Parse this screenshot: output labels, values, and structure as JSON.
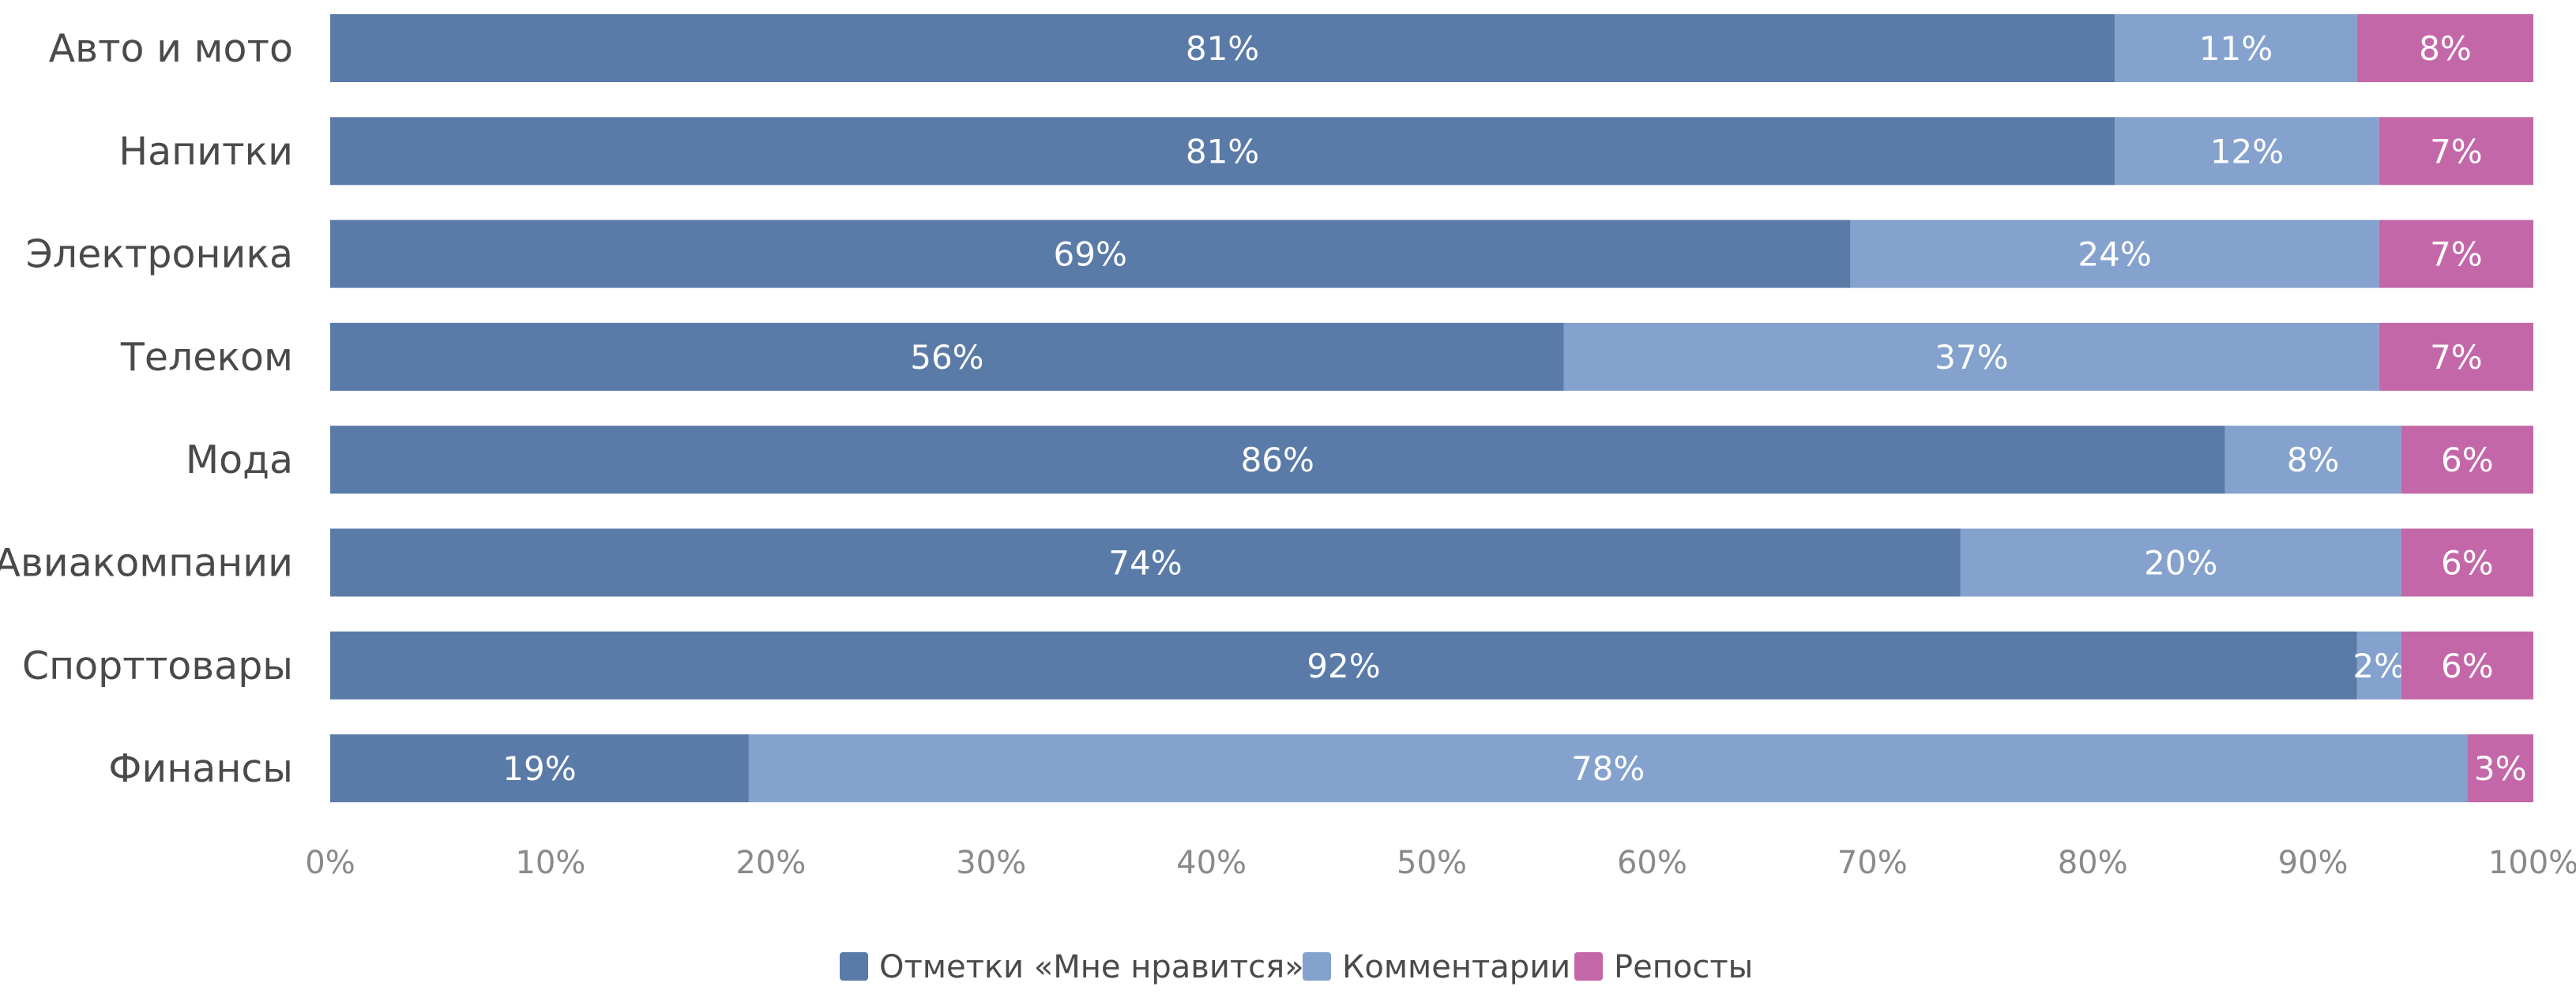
{
  "chart_data": {
    "type": "bar",
    "orientation": "horizontal",
    "stacked": true,
    "title": "",
    "xlabel": "",
    "ylabel": "",
    "xlim": [
      0,
      100
    ],
    "x_ticks": [
      "0%",
      "10%",
      "20%",
      "30%",
      "40%",
      "50%",
      "60%",
      "70%",
      "80%",
      "90%",
      "100%"
    ],
    "grid": false,
    "legend_position": "bottom",
    "categories": [
      "Авто и мото",
      "Напитки",
      "Электроника",
      "Телеком",
      "Мода",
      "Авиакомпании",
      "Спорттовары",
      "Финансы"
    ],
    "series": [
      {
        "name": "Отметки «Мне нравится»",
        "color": "#5a7ba8",
        "values": [
          81,
          81,
          69,
          56,
          86,
          74,
          92,
          19
        ]
      },
      {
        "name": "Комментарии",
        "color": "#84a2cd",
        "values": [
          11,
          12,
          24,
          37,
          8,
          20,
          2,
          78
        ]
      },
      {
        "name": "Репосты",
        "color": "#c467a8",
        "values": [
          8,
          7,
          7,
          7,
          6,
          6,
          6,
          3
        ]
      }
    ]
  }
}
